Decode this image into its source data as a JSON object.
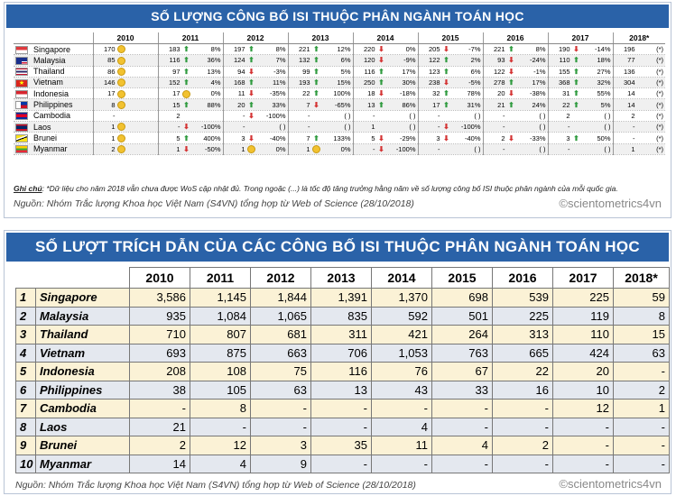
{
  "table1": {
    "title": "SỐ LƯỢNG CÔNG BỐ ISI THUỘC PHÂN NGÀNH TOÁN HỌC",
    "years": [
      "2010",
      "2011",
      "2012",
      "2013",
      "2014",
      "2015",
      "2016",
      "2017",
      "2018*"
    ],
    "rows": [
      {
        "country": "Singapore",
        "flag": "singapore-flag",
        "cells": [
          [
            "170",
            "flat",
            ""
          ],
          [
            "183",
            "up",
            "8%"
          ],
          [
            "197",
            "up",
            "8%"
          ],
          [
            "221",
            "up",
            "12%"
          ],
          [
            "220",
            "dn",
            "0%"
          ],
          [
            "205",
            "dn",
            "-7%"
          ],
          [
            "221",
            "up",
            "8%"
          ],
          [
            "190",
            "dn",
            "-14%"
          ],
          [
            "196",
            "",
            "(*)"
          ]
        ]
      },
      {
        "country": "Malaysia",
        "flag": "malaysia-flag",
        "cells": [
          [
            "85",
            "flat",
            ""
          ],
          [
            "116",
            "up",
            "36%"
          ],
          [
            "124",
            "up",
            "7%"
          ],
          [
            "132",
            "up",
            "6%"
          ],
          [
            "120",
            "dn",
            "-9%"
          ],
          [
            "122",
            "up",
            "2%"
          ],
          [
            "93",
            "dn",
            "-24%"
          ],
          [
            "110",
            "up",
            "18%"
          ],
          [
            "77",
            "",
            "(*)"
          ]
        ]
      },
      {
        "country": "Thailand",
        "flag": "thailand-flag",
        "cells": [
          [
            "86",
            "flat",
            ""
          ],
          [
            "97",
            "up",
            "13%"
          ],
          [
            "94",
            "dn",
            "-3%"
          ],
          [
            "99",
            "up",
            "5%"
          ],
          [
            "116",
            "up",
            "17%"
          ],
          [
            "123",
            "up",
            "6%"
          ],
          [
            "122",
            "dn",
            "-1%"
          ],
          [
            "155",
            "up",
            "27%"
          ],
          [
            "136",
            "",
            "(*)"
          ]
        ]
      },
      {
        "country": "Vietnam",
        "flag": "vietnam-flag",
        "cells": [
          [
            "146",
            "flat",
            ""
          ],
          [
            "152",
            "up",
            "4%"
          ],
          [
            "168",
            "up",
            "11%"
          ],
          [
            "193",
            "up",
            "15%"
          ],
          [
            "250",
            "up",
            "30%"
          ],
          [
            "238",
            "dn",
            "-5%"
          ],
          [
            "278",
            "up",
            "17%"
          ],
          [
            "368",
            "up",
            "32%"
          ],
          [
            "304",
            "",
            "(*)"
          ]
        ]
      },
      {
        "country": "Indonesia",
        "flag": "indonesia-flag",
        "cells": [
          [
            "17",
            "flat",
            ""
          ],
          [
            "17",
            "flat",
            "0%"
          ],
          [
            "11",
            "dn",
            "-35%"
          ],
          [
            "22",
            "up",
            "100%"
          ],
          [
            "18",
            "dn",
            "-18%"
          ],
          [
            "32",
            "up",
            "78%"
          ],
          [
            "20",
            "dn",
            "-38%"
          ],
          [
            "31",
            "up",
            "55%"
          ],
          [
            "14",
            "",
            "(*)"
          ]
        ]
      },
      {
        "country": "Philippines",
        "flag": "philippines-flag",
        "cells": [
          [
            "8",
            "flat",
            ""
          ],
          [
            "15",
            "up",
            "88%"
          ],
          [
            "20",
            "up",
            "33%"
          ],
          [
            "7",
            "dn",
            "-65%"
          ],
          [
            "13",
            "up",
            "86%"
          ],
          [
            "17",
            "up",
            "31%"
          ],
          [
            "21",
            "up",
            "24%"
          ],
          [
            "22",
            "up",
            "5%"
          ],
          [
            "14",
            "",
            "(*)"
          ]
        ]
      },
      {
        "country": "Cambodia",
        "flag": "cambodia-flag",
        "cells": [
          [
            "-",
            "",
            ""
          ],
          [
            "2",
            "",
            ""
          ],
          [
            "-",
            "dn",
            "-100%"
          ],
          [
            "-",
            "",
            "(   )"
          ],
          [
            "-",
            "",
            "(   )"
          ],
          [
            "-",
            "",
            "(   )"
          ],
          [
            "-",
            "",
            "(   )"
          ],
          [
            "2",
            "",
            "(   )"
          ],
          [
            "2",
            "",
            "(*)"
          ]
        ]
      },
      {
        "country": "Laos",
        "flag": "laos-flag",
        "cells": [
          [
            "1",
            "flat",
            ""
          ],
          [
            "-",
            "dn",
            "-100%"
          ],
          [
            "-",
            "",
            "(   )"
          ],
          [
            "-",
            "",
            "(   )"
          ],
          [
            "1",
            "",
            "(   )"
          ],
          [
            "-",
            "dn",
            "-100%"
          ],
          [
            "-",
            "",
            "(   )"
          ],
          [
            "-",
            "",
            "(   )"
          ],
          [
            "-",
            "",
            "(*)"
          ]
        ]
      },
      {
        "country": "Brunei",
        "flag": "brunei-flag",
        "cells": [
          [
            "1",
            "flat",
            ""
          ],
          [
            "5",
            "up",
            "400%"
          ],
          [
            "3",
            "dn",
            "-40%"
          ],
          [
            "7",
            "up",
            "133%"
          ],
          [
            "5",
            "dn",
            "-29%"
          ],
          [
            "3",
            "dn",
            "-40%"
          ],
          [
            "2",
            "dn",
            "-33%"
          ],
          [
            "3",
            "up",
            "50%"
          ],
          [
            "-",
            "",
            "(*)"
          ]
        ]
      },
      {
        "country": "Myanmar",
        "flag": "myanmar-flag",
        "cells": [
          [
            "2",
            "flat",
            ""
          ],
          [
            "1",
            "dn",
            "-50%"
          ],
          [
            "1",
            "flat",
            "0%"
          ],
          [
            "1",
            "flat",
            "0%"
          ],
          [
            "-",
            "dn",
            "-100%"
          ],
          [
            "-",
            "",
            "(   )"
          ],
          [
            "-",
            "",
            "(   )"
          ],
          [
            "-",
            "",
            "(   )"
          ],
          [
            "1",
            "",
            "(*)"
          ]
        ]
      }
    ],
    "note_label": "Ghi chú",
    "note_text": ": *Dữ liệu cho năm 2018 vẫn chưa được WoS cập nhật đủ. Trong ngoặc (...) là tốc độ tăng trưởng hằng năm về số lượng công bố ISI thuộc phân ngành của mỗi quốc gia.",
    "source": "Nguồn: Nhóm Trắc lượng Khoa học Việt Nam (S4VN) tổng hợp từ Web of Science (28/10/2018)",
    "brand": "©scientometrics4vn"
  },
  "table2": {
    "title": "SỐ LƯỢT TRÍCH DẪN CỦA CÁC CÔNG BỐ ISI THUỘC PHÂN NGÀNH TOÁN HỌC",
    "years": [
      "2010",
      "2011",
      "2012",
      "2013",
      "2014",
      "2015",
      "2016",
      "2017",
      "2018*"
    ],
    "rows": [
      {
        "rank": "1",
        "country": "Singapore",
        "values": [
          "3,586",
          "1,145",
          "1,844",
          "1,391",
          "1,370",
          "698",
          "539",
          "225",
          "59"
        ]
      },
      {
        "rank": "2",
        "country": "Malaysia",
        "values": [
          "935",
          "1,084",
          "1,065",
          "835",
          "592",
          "501",
          "225",
          "119",
          "8"
        ]
      },
      {
        "rank": "3",
        "country": "Thailand",
        "values": [
          "710",
          "807",
          "681",
          "311",
          "421",
          "264",
          "313",
          "110",
          "15"
        ]
      },
      {
        "rank": "4",
        "country": "Vietnam",
        "values": [
          "693",
          "875",
          "663",
          "706",
          "1,053",
          "763",
          "665",
          "424",
          "63"
        ]
      },
      {
        "rank": "5",
        "country": "Indonesia",
        "values": [
          "208",
          "108",
          "75",
          "116",
          "76",
          "67",
          "22",
          "20",
          "-"
        ]
      },
      {
        "rank": "6",
        "country": "Philippines",
        "values": [
          "38",
          "105",
          "63",
          "13",
          "43",
          "33",
          "16",
          "10",
          "2"
        ]
      },
      {
        "rank": "7",
        "country": "Cambodia",
        "values": [
          "-",
          "8",
          "-",
          "-",
          "-",
          "-",
          "-",
          "12",
          "1"
        ]
      },
      {
        "rank": "8",
        "country": "Laos",
        "values": [
          "21",
          "-",
          "-",
          "-",
          "4",
          "-",
          "-",
          "-",
          "-"
        ]
      },
      {
        "rank": "9",
        "country": "Brunei",
        "values": [
          "2",
          "12",
          "3",
          "35",
          "11",
          "4",
          "2",
          "-",
          "-"
        ]
      },
      {
        "rank": "10",
        "country": "Myanmar",
        "values": [
          "14",
          "4",
          "9",
          "-",
          "-",
          "-",
          "-",
          "-",
          "-"
        ]
      }
    ],
    "source": "Nguồn: Nhóm Trắc lượng Khoa học Việt Nam (S4VN) tổng hợp từ Web of Science (28/10/2018)",
    "brand": "©scientometrics4vn"
  }
}
